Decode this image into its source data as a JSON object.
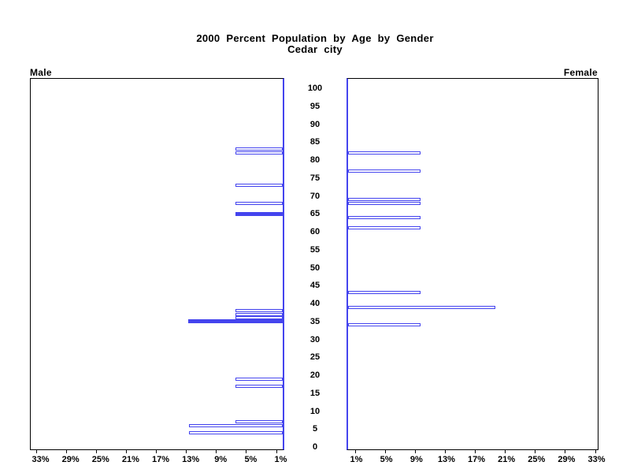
{
  "title": {
    "line1": "2000 Percent Population by Age by Gender",
    "line2": "Cedar city"
  },
  "panels": {
    "male_label": "Male",
    "female_label": "Female"
  },
  "colors": {
    "bar_outline": "#4444ee",
    "bar_fill": "#4444ee",
    "axis_zero_line": "#4444ee",
    "frame": "#000000",
    "text": "#000000",
    "background": "#ffffff"
  },
  "chart_data": {
    "type": "bar",
    "variant": "population-pyramid",
    "title": "2000 Percent Population by Age by Gender",
    "subtitle": "Cedar city",
    "age_axis": {
      "min": 0,
      "max": 100,
      "tick_step": 5,
      "tick_labels": [
        "0",
        "5",
        "10",
        "15",
        "20",
        "25",
        "30",
        "35",
        "40",
        "45",
        "50",
        "55",
        "60",
        "65",
        "70",
        "75",
        "80",
        "85",
        "90",
        "95",
        "100"
      ]
    },
    "pct_axis": {
      "min": 0,
      "max": 34,
      "tick_values": [
        1,
        5,
        9,
        13,
        17,
        21,
        25,
        29,
        33
      ],
      "male_tick_labels": [
        "33%",
        "29%",
        "25%",
        "21%",
        "17%",
        "13%",
        "9%",
        "5%",
        "1%"
      ],
      "female_tick_labels": [
        "1%",
        "5%",
        "9%",
        "13%",
        "17%",
        "21%",
        "25%",
        "29%",
        "33%"
      ],
      "grid": false
    },
    "series": [
      {
        "name": "Male",
        "side": "left",
        "bars": [
          {
            "age": 83,
            "pct": 6.3,
            "filled": false
          },
          {
            "age": 82,
            "pct": 6.3,
            "filled": false
          },
          {
            "age": 73,
            "pct": 6.3,
            "filled": false
          },
          {
            "age": 68,
            "pct": 6.3,
            "filled": false
          },
          {
            "age": 65,
            "pct": 6.3,
            "filled": true
          },
          {
            "age": 38,
            "pct": 6.3,
            "filled": false
          },
          {
            "age": 37,
            "pct": 6.3,
            "filled": false
          },
          {
            "age": 36,
            "pct": 6.3,
            "filled": false
          },
          {
            "age": 35,
            "pct": 12.6,
            "filled": true
          },
          {
            "age": 19,
            "pct": 6.3,
            "filled": false
          },
          {
            "age": 17,
            "pct": 6.3,
            "filled": false
          },
          {
            "age": 7,
            "pct": 6.3,
            "filled": false
          },
          {
            "age": 6,
            "pct": 12.5,
            "filled": false
          },
          {
            "age": 4,
            "pct": 12.5,
            "filled": false
          }
        ]
      },
      {
        "name": "Female",
        "side": "right",
        "bars": [
          {
            "age": 82,
            "pct": 9.7,
            "filled": false
          },
          {
            "age": 77,
            "pct": 9.7,
            "filled": false
          },
          {
            "age": 69,
            "pct": 9.7,
            "filled": false
          },
          {
            "age": 68,
            "pct": 9.7,
            "filled": false
          },
          {
            "age": 64,
            "pct": 9.7,
            "filled": false
          },
          {
            "age": 61,
            "pct": 9.7,
            "filled": false
          },
          {
            "age": 43,
            "pct": 9.7,
            "filled": false
          },
          {
            "age": 39,
            "pct": 19.6,
            "filled": false
          },
          {
            "age": 34,
            "pct": 9.7,
            "filled": false
          }
        ]
      }
    ]
  }
}
